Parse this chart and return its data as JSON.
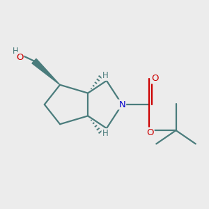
{
  "background_color": "#ececec",
  "bond_color": "#4a7c7c",
  "atom_color_N": "#0000cc",
  "atom_color_O": "#cc0000",
  "atom_color_H": "#4a7c7c",
  "line_width": 1.6,
  "figsize": [
    3.0,
    3.0
  ],
  "dpi": 100,
  "xlim": [
    0,
    10
  ],
  "ylim": [
    0,
    10
  ]
}
